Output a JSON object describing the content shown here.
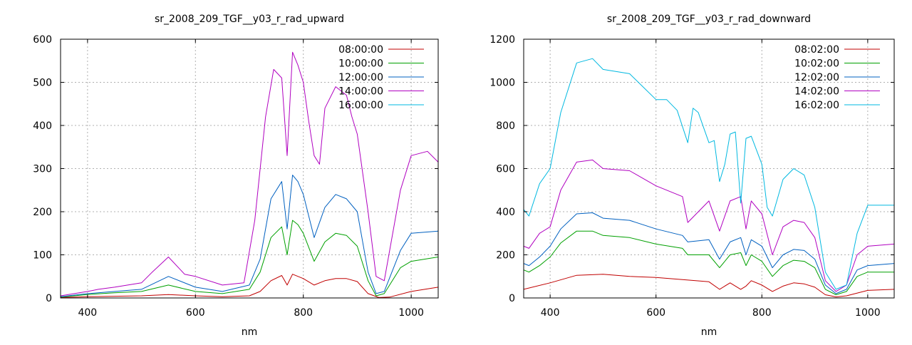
{
  "chart_data": [
    {
      "type": "line",
      "title": "sr_2008_209_TGF__y03_r_rad_upward",
      "xlabel": "nm",
      "ylabel": "",
      "xlim": [
        350,
        1050
      ],
      "ylim": [
        0,
        600
      ],
      "xticks": [
        400,
        600,
        800,
        1000
      ],
      "yticks": [
        0,
        100,
        200,
        300,
        400,
        500,
        600
      ],
      "grid": true,
      "legend_position": "top-right",
      "series": [
        {
          "name": "08:00:00",
          "color": "#c00000",
          "x": [
            350,
            400,
            450,
            500,
            550,
            600,
            650,
            700,
            720,
            740,
            760,
            770,
            780,
            800,
            820,
            840,
            860,
            880,
            900,
            920,
            940,
            960,
            1000,
            1050
          ],
          "y": [
            1,
            3,
            4,
            5,
            8,
            5,
            3,
            5,
            15,
            40,
            52,
            30,
            55,
            45,
            30,
            40,
            45,
            45,
            38,
            10,
            1,
            2,
            15,
            25
          ]
        },
        {
          "name": "10:00:00",
          "color": "#00a000",
          "x": [
            350,
            400,
            450,
            500,
            550,
            600,
            650,
            700,
            720,
            740,
            760,
            770,
            780,
            790,
            800,
            820,
            840,
            860,
            880,
            900,
            920,
            935,
            950,
            980,
            1000,
            1050
          ],
          "y": [
            2,
            8,
            12,
            15,
            30,
            15,
            10,
            20,
            60,
            140,
            165,
            100,
            180,
            170,
            150,
            85,
            130,
            150,
            145,
            120,
            40,
            5,
            10,
            70,
            85,
            95
          ]
        },
        {
          "name": "12:00:00",
          "color": "#0060c0",
          "x": [
            350,
            400,
            450,
            500,
            550,
            600,
            650,
            700,
            720,
            740,
            760,
            770,
            780,
            790,
            800,
            820,
            840,
            860,
            880,
            900,
            920,
            935,
            950,
            980,
            1000,
            1050
          ],
          "y": [
            3,
            10,
            15,
            20,
            50,
            25,
            15,
            30,
            90,
            230,
            270,
            160,
            285,
            270,
            240,
            140,
            210,
            240,
            230,
            200,
            60,
            10,
            15,
            110,
            150,
            155
          ]
        },
        {
          "name": "14:00:00",
          "color": "#b000c0",
          "x": [
            350,
            400,
            420,
            450,
            500,
            520,
            550,
            580,
            600,
            650,
            690,
            710,
            730,
            745,
            760,
            770,
            780,
            790,
            800,
            810,
            820,
            830,
            840,
            860,
            880,
            890,
            900,
            920,
            935,
            950,
            980,
            1000,
            1030,
            1050
          ],
          "y": [
            5,
            15,
            20,
            25,
            35,
            60,
            95,
            55,
            50,
            30,
            35,
            180,
            420,
            530,
            510,
            330,
            570,
            540,
            500,
            410,
            330,
            310,
            440,
            490,
            470,
            420,
            380,
            200,
            50,
            40,
            250,
            330,
            340,
            315
          ]
        },
        {
          "name": "16:00:00",
          "color": "#00b8e0",
          "x": [],
          "y": []
        }
      ]
    },
    {
      "type": "line",
      "title": "sr_2008_209_TGF__y03_r_rad_downward",
      "xlabel": "nm",
      "ylabel": "",
      "xlim": [
        350,
        1050
      ],
      "ylim": [
        0,
        1200
      ],
      "xticks": [
        400,
        600,
        800,
        1000
      ],
      "yticks": [
        0,
        200,
        400,
        600,
        800,
        1000,
        1200
      ],
      "grid": true,
      "legend_position": "top-right",
      "series": [
        {
          "name": "08:02:00",
          "color": "#c00000",
          "x": [
            350,
            400,
            450,
            500,
            550,
            600,
            650,
            700,
            720,
            740,
            760,
            770,
            780,
            800,
            820,
            840,
            860,
            880,
            900,
            920,
            940,
            960,
            1000,
            1050
          ],
          "y": [
            40,
            70,
            105,
            110,
            100,
            95,
            85,
            75,
            40,
            70,
            40,
            55,
            80,
            60,
            30,
            55,
            70,
            65,
            50,
            15,
            5,
            10,
            35,
            40
          ]
        },
        {
          "name": "10:02:00",
          "color": "#00a000",
          "x": [
            350,
            360,
            380,
            400,
            420,
            450,
            480,
            500,
            550,
            600,
            650,
            660,
            700,
            720,
            740,
            760,
            770,
            780,
            800,
            820,
            840,
            860,
            880,
            900,
            920,
            940,
            960,
            980,
            1000,
            1050
          ],
          "y": [
            130,
            120,
            150,
            190,
            255,
            310,
            310,
            290,
            280,
            250,
            230,
            200,
            200,
            140,
            200,
            210,
            150,
            200,
            170,
            100,
            150,
            175,
            170,
            140,
            40,
            15,
            30,
            100,
            120,
            120
          ]
        },
        {
          "name": "12:02:00",
          "color": "#0060c0",
          "x": [
            350,
            360,
            380,
            400,
            420,
            450,
            480,
            500,
            550,
            600,
            650,
            660,
            700,
            720,
            740,
            760,
            770,
            780,
            800,
            820,
            840,
            860,
            880,
            900,
            920,
            940,
            960,
            980,
            1000,
            1050
          ],
          "y": [
            160,
            150,
            190,
            240,
            320,
            390,
            395,
            370,
            360,
            320,
            290,
            260,
            270,
            180,
            260,
            280,
            200,
            270,
            240,
            140,
            200,
            225,
            220,
            180,
            60,
            20,
            40,
            130,
            150,
            160
          ]
        },
        {
          "name": "14:02:00",
          "color": "#b000c0",
          "x": [
            350,
            360,
            380,
            400,
            420,
            450,
            480,
            500,
            550,
            600,
            650,
            660,
            700,
            720,
            740,
            760,
            770,
            780,
            800,
            820,
            840,
            860,
            880,
            900,
            920,
            940,
            960,
            980,
            1000,
            1050
          ],
          "y": [
            240,
            230,
            300,
            330,
            500,
            630,
            640,
            600,
            590,
            520,
            470,
            350,
            450,
            310,
            450,
            470,
            320,
            450,
            390,
            200,
            330,
            360,
            350,
            280,
            80,
            30,
            60,
            200,
            240,
            250
          ]
        },
        {
          "name": "16:02:00",
          "color": "#00b8e0",
          "x": [
            350,
            360,
            380,
            400,
            420,
            450,
            480,
            500,
            550,
            600,
            620,
            640,
            660,
            670,
            680,
            700,
            710,
            720,
            730,
            740,
            750,
            760,
            770,
            780,
            800,
            810,
            820,
            840,
            860,
            880,
            900,
            920,
            940,
            960,
            980,
            1000,
            1050
          ],
          "y": [
            410,
            380,
            530,
            600,
            860,
            1090,
            1110,
            1060,
            1040,
            920,
            920,
            870,
            720,
            880,
            860,
            720,
            730,
            540,
            620,
            760,
            770,
            440,
            740,
            750,
            620,
            420,
            380,
            550,
            600,
            570,
            420,
            120,
            40,
            60,
            300,
            430,
            430
          ]
        }
      ]
    }
  ]
}
